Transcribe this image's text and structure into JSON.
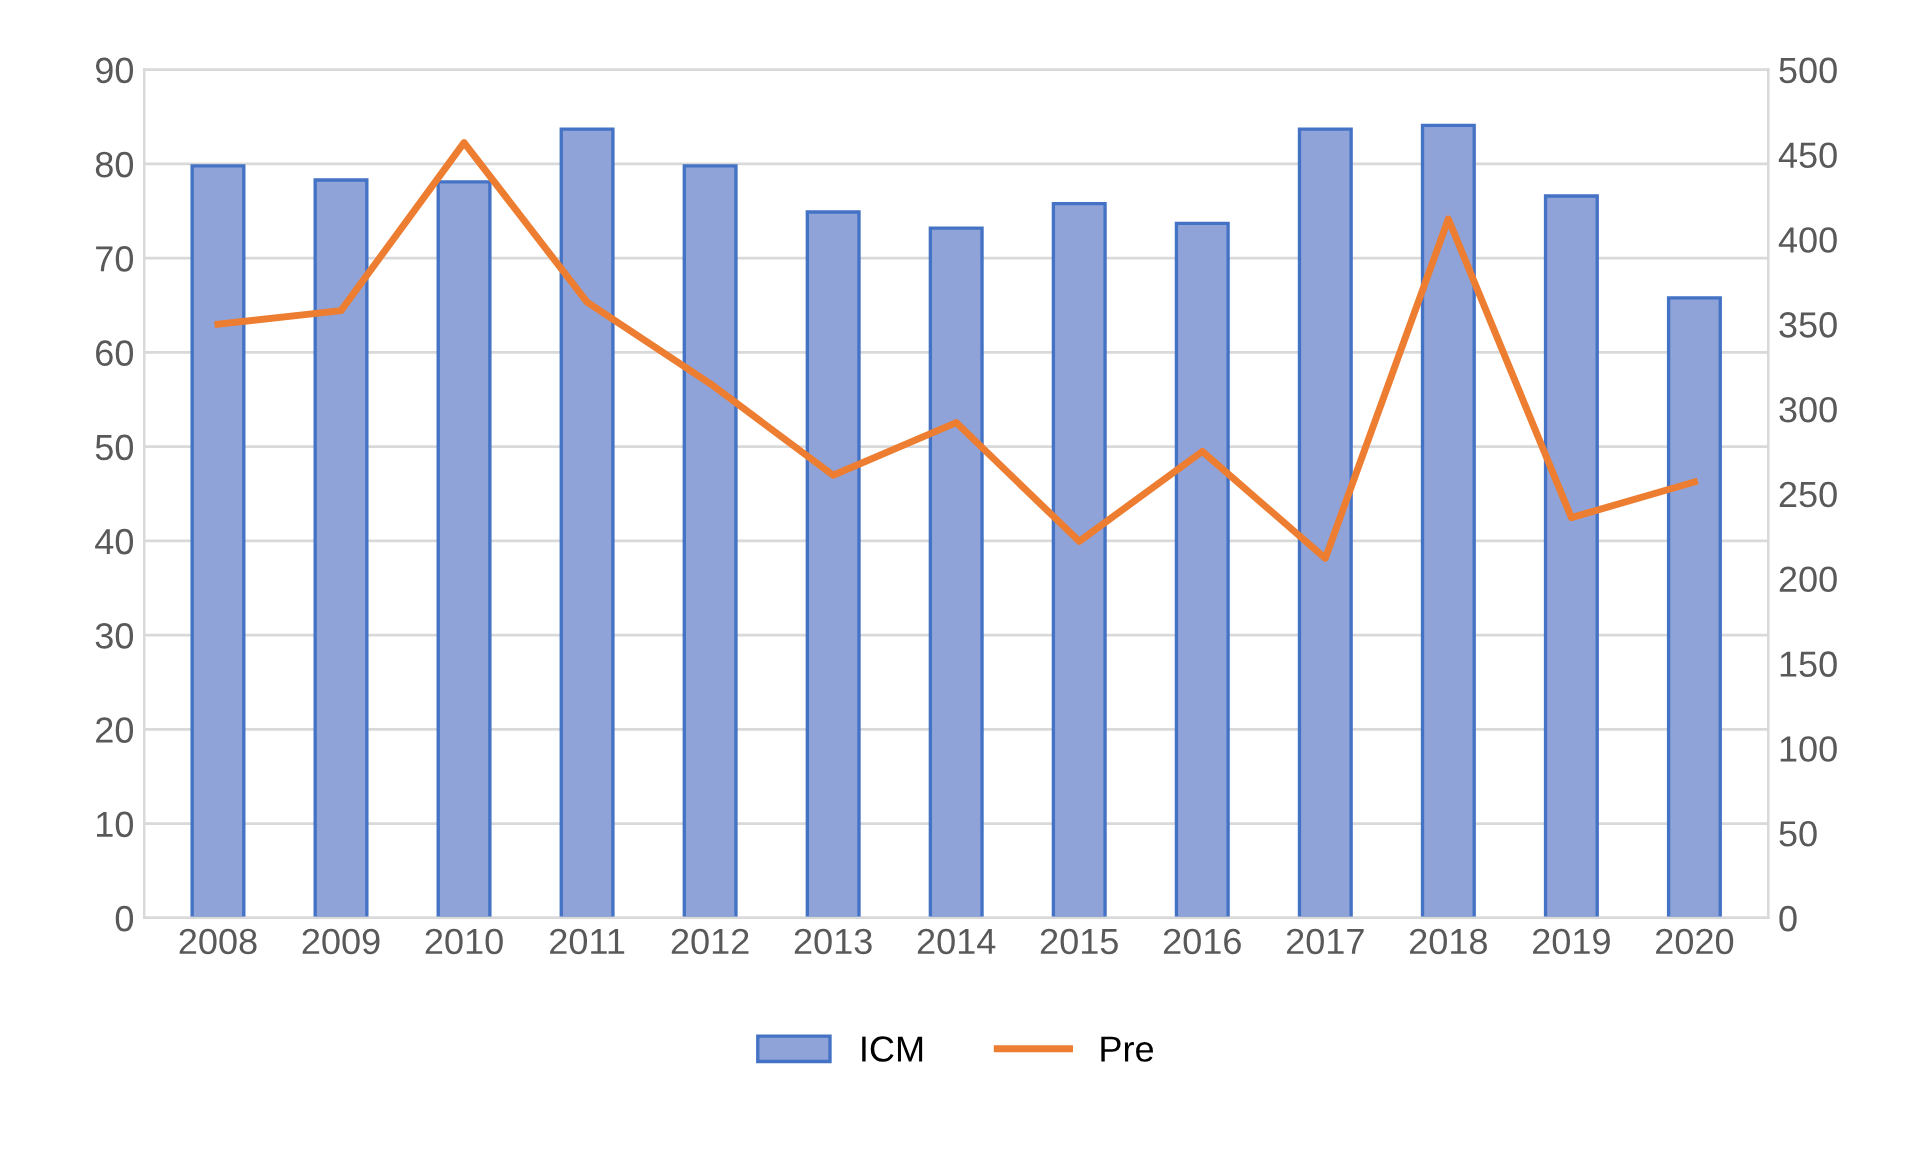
{
  "chart_data": {
    "type": "bar",
    "categories": [
      "2008",
      "2009",
      "2010",
      "2011",
      "2012",
      "2013",
      "2014",
      "2015",
      "2016",
      "2017",
      "2018",
      "2019",
      "2020"
    ],
    "series": [
      {
        "name": "ICM",
        "color": "#8fa3d8",
        "values": [
          79.8,
          78.3,
          78.1,
          83.7,
          79.8,
          74.9,
          73.2,
          75.8,
          73.7,
          83.7,
          84.1,
          76.6,
          65.8
        ]
      },
      {
        "name": "Pre",
        "type": "line",
        "axis": "y2",
        "color": "#ed7d31",
        "values": [
          350,
          358,
          457,
          363,
          315,
          261,
          292,
          222,
          275,
          212,
          412,
          236,
          257
        ]
      }
    ],
    "ylim": [
      0,
      90
    ],
    "yticks": [
      0,
      10,
      20,
      30,
      40,
      50,
      60,
      70,
      80,
      90
    ],
    "y2lim": [
      0,
      500
    ],
    "y2ticks": [
      0,
      50,
      100,
      150,
      200,
      250,
      300,
      350,
      400,
      450,
      500
    ],
    "grid": "y",
    "legend": "bottom",
    "marker": "none",
    "line_style": "solid"
  }
}
